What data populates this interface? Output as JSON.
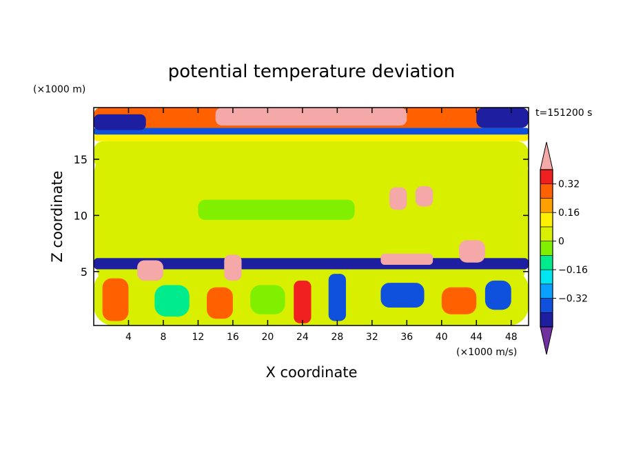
{
  "chart_data": {
    "type": "heatmap",
    "title": "potential temperature deviation",
    "xlabel": "X coordinate",
    "ylabel": "Z coordinate",
    "x_unit": "(×1000 m/s)",
    "y_unit": "(×1000 m)",
    "time_label": "t=151200 s",
    "xlim": [
      0,
      50
    ],
    "ylim": [
      0.2,
      19.6
    ],
    "x_ticks": [
      4,
      8,
      12,
      16,
      20,
      24,
      28,
      32,
      36,
      40,
      44,
      48
    ],
    "y_ticks": [
      5,
      10,
      15
    ],
    "colorbar": {
      "levels": [
        -0.48,
        -0.4,
        -0.32,
        -0.24,
        -0.16,
        -0.08,
        0,
        0.08,
        0.16,
        0.24,
        0.32,
        0.4
      ],
      "tick_labels": [
        "−0.32",
        "−0.16",
        "0",
        "0.16",
        "0.32"
      ],
      "tick_values": [
        -0.32,
        -0.16,
        0,
        0.16,
        0.32
      ],
      "colors": [
        "#7030a0",
        "#1e1ea0",
        "#0f50dc",
        "#0aa0ff",
        "#00e6f0",
        "#00ec8c",
        "#80f000",
        "#d8f000",
        "#fff000",
        "#ffa000",
        "#ff6000",
        "#f02020",
        "#f4a8a8"
      ],
      "extend": "both"
    },
    "field_regions": [
      {
        "x": [
          0,
          50
        ],
        "z": [
          0.2,
          19.6
        ],
        "value": 0.04
      },
      {
        "x": [
          0,
          50
        ],
        "z": [
          7.6,
          16.6
        ],
        "value": 0.0
      },
      {
        "x": [
          0,
          10
        ],
        "z": [
          14.2,
          16.6
        ],
        "value": 0.04
      },
      {
        "x": [
          27,
          36
        ],
        "z": [
          13.0,
          16.6
        ],
        "value": 0.04
      },
      {
        "x": [
          40,
          50
        ],
        "z": [
          13.6,
          16.6
        ],
        "value": 0.04
      },
      {
        "x": [
          10,
          27
        ],
        "z": [
          10.8,
          13.2
        ],
        "value": 0.04
      },
      {
        "x": [
          12,
          30
        ],
        "z": [
          9.6,
          11.4
        ],
        "value": -0.08
      },
      {
        "x": [
          30,
          50
        ],
        "z": [
          8.6,
          10.6
        ],
        "value": 0.04
      },
      {
        "x": [
          0,
          50
        ],
        "z": [
          16.6,
          17.6
        ],
        "value": 0.12
      },
      {
        "x": [
          0,
          50
        ],
        "z": [
          17.2,
          17.8
        ],
        "value": -0.4
      },
      {
        "x": [
          0,
          50
        ],
        "z": [
          17.8,
          19.6
        ],
        "value": 0.28
      },
      {
        "x": [
          0,
          6
        ],
        "z": [
          17.6,
          19.0
        ],
        "value": -0.48
      },
      {
        "x": [
          44,
          50
        ],
        "z": [
          17.8,
          19.6
        ],
        "value": -0.48
      },
      {
        "x": [
          14,
          36
        ],
        "z": [
          18.0,
          19.6
        ],
        "value": 0.44
      },
      {
        "x": [
          0,
          50
        ],
        "z": [
          6.2,
          7.8
        ],
        "value": 0.04
      },
      {
        "x": [
          0,
          50
        ],
        "z": [
          5.2,
          6.2
        ],
        "value": -0.48
      },
      {
        "x": [
          0,
          50
        ],
        "z": [
          0.2,
          5.2
        ],
        "value": 0.04
      },
      {
        "x": [
          5,
          8
        ],
        "z": [
          4.2,
          6.0
        ],
        "value": 0.44
      },
      {
        "x": [
          15,
          17
        ],
        "z": [
          4.2,
          6.5
        ],
        "value": 0.44
      },
      {
        "x": [
          33,
          39
        ],
        "z": [
          5.6,
          6.6
        ],
        "value": 0.44
      },
      {
        "x": [
          42,
          45
        ],
        "z": [
          5.8,
          7.8
        ],
        "value": 0.44
      },
      {
        "x": [
          34,
          36
        ],
        "z": [
          10.5,
          12.5
        ],
        "value": 0.44
      },
      {
        "x": [
          37,
          39
        ],
        "z": [
          10.8,
          12.6
        ],
        "value": 0.44
      },
      {
        "x": [
          1,
          4
        ],
        "z": [
          0.6,
          4.4
        ],
        "value": 0.3
      },
      {
        "x": [
          13,
          16
        ],
        "z": [
          0.8,
          3.6
        ],
        "value": 0.3
      },
      {
        "x": [
          23,
          25
        ],
        "z": [
          0.4,
          4.2
        ],
        "value": 0.36
      },
      {
        "x": [
          27,
          29
        ],
        "z": [
          0.6,
          4.8
        ],
        "value": -0.4
      },
      {
        "x": [
          33,
          38
        ],
        "z": [
          1.8,
          4.0
        ],
        "value": -0.4
      },
      {
        "x": [
          45,
          48
        ],
        "z": [
          1.6,
          4.2
        ],
        "value": -0.4
      },
      {
        "x": [
          40,
          44
        ],
        "z": [
          1.2,
          3.6
        ],
        "value": 0.24
      },
      {
        "x": [
          7,
          11
        ],
        "z": [
          1.0,
          3.8
        ],
        "value": -0.16
      },
      {
        "x": [
          18,
          22
        ],
        "z": [
          1.2,
          3.8
        ],
        "value": -0.08
      }
    ]
  }
}
